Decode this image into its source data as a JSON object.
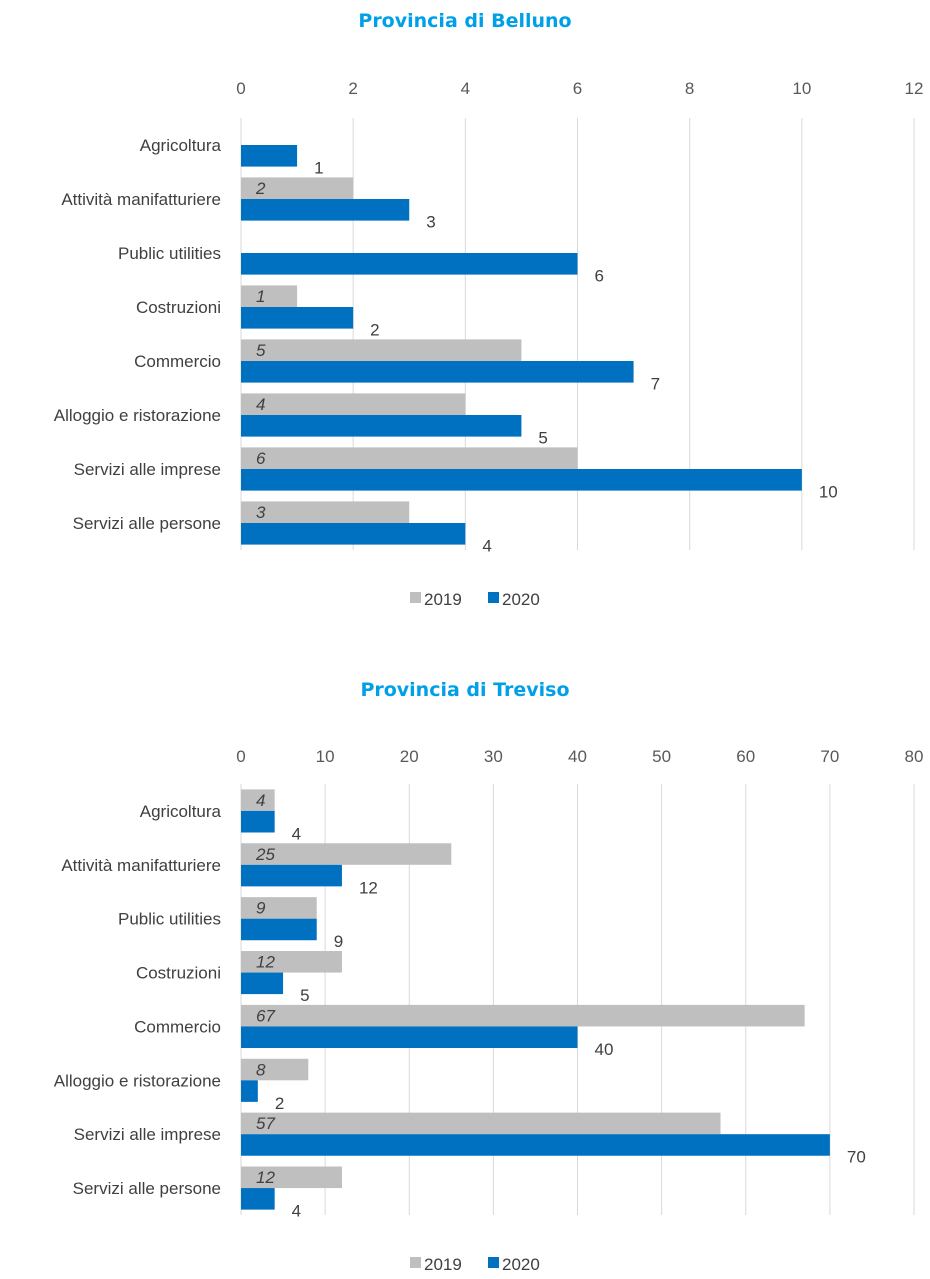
{
  "colors": {
    "title": "#00A0E9",
    "series_2019": "#BFBFBF",
    "series_2020": "#0070C0",
    "grid": "#D9D9D9"
  },
  "chart_data": [
    {
      "type": "bar",
      "orientation": "horizontal",
      "title": "Provincia di Belluno",
      "categories": [
        "Agricoltura",
        "Attività manifatturiere",
        "Public utilities",
        "Costruzioni",
        "Commercio",
        "Alloggio e ristorazione",
        "Servizi alle imprese",
        "Servizi alle persone"
      ],
      "series": [
        {
          "name": "2019",
          "values": [
            null,
            2,
            null,
            1,
            5,
            4,
            6,
            3
          ]
        },
        {
          "name": "2020",
          "values": [
            1,
            3,
            6,
            2,
            7,
            5,
            10,
            4
          ]
        }
      ],
      "xlim": [
        0,
        12
      ],
      "ticks": [
        0,
        2,
        4,
        6,
        8,
        10,
        12
      ],
      "grid": true,
      "legend": "bottom"
    },
    {
      "type": "bar",
      "orientation": "horizontal",
      "title": "Provincia di Treviso",
      "categories": [
        "Agricoltura",
        "Attività manifatturiere",
        "Public utilities",
        "Costruzioni",
        "Commercio",
        "Alloggio e ristorazione",
        "Servizi alle imprese",
        "Servizi alle persone"
      ],
      "series": [
        {
          "name": "2019",
          "values": [
            4,
            25,
            9,
            12,
            67,
            8,
            57,
            12
          ]
        },
        {
          "name": "2020",
          "values": [
            4,
            12,
            9,
            5,
            40,
            2,
            70,
            4
          ]
        }
      ],
      "xlim": [
        0,
        80
      ],
      "ticks": [
        0,
        10,
        20,
        30,
        40,
        50,
        60,
        70,
        80
      ],
      "grid": true,
      "legend": "bottom"
    }
  ]
}
